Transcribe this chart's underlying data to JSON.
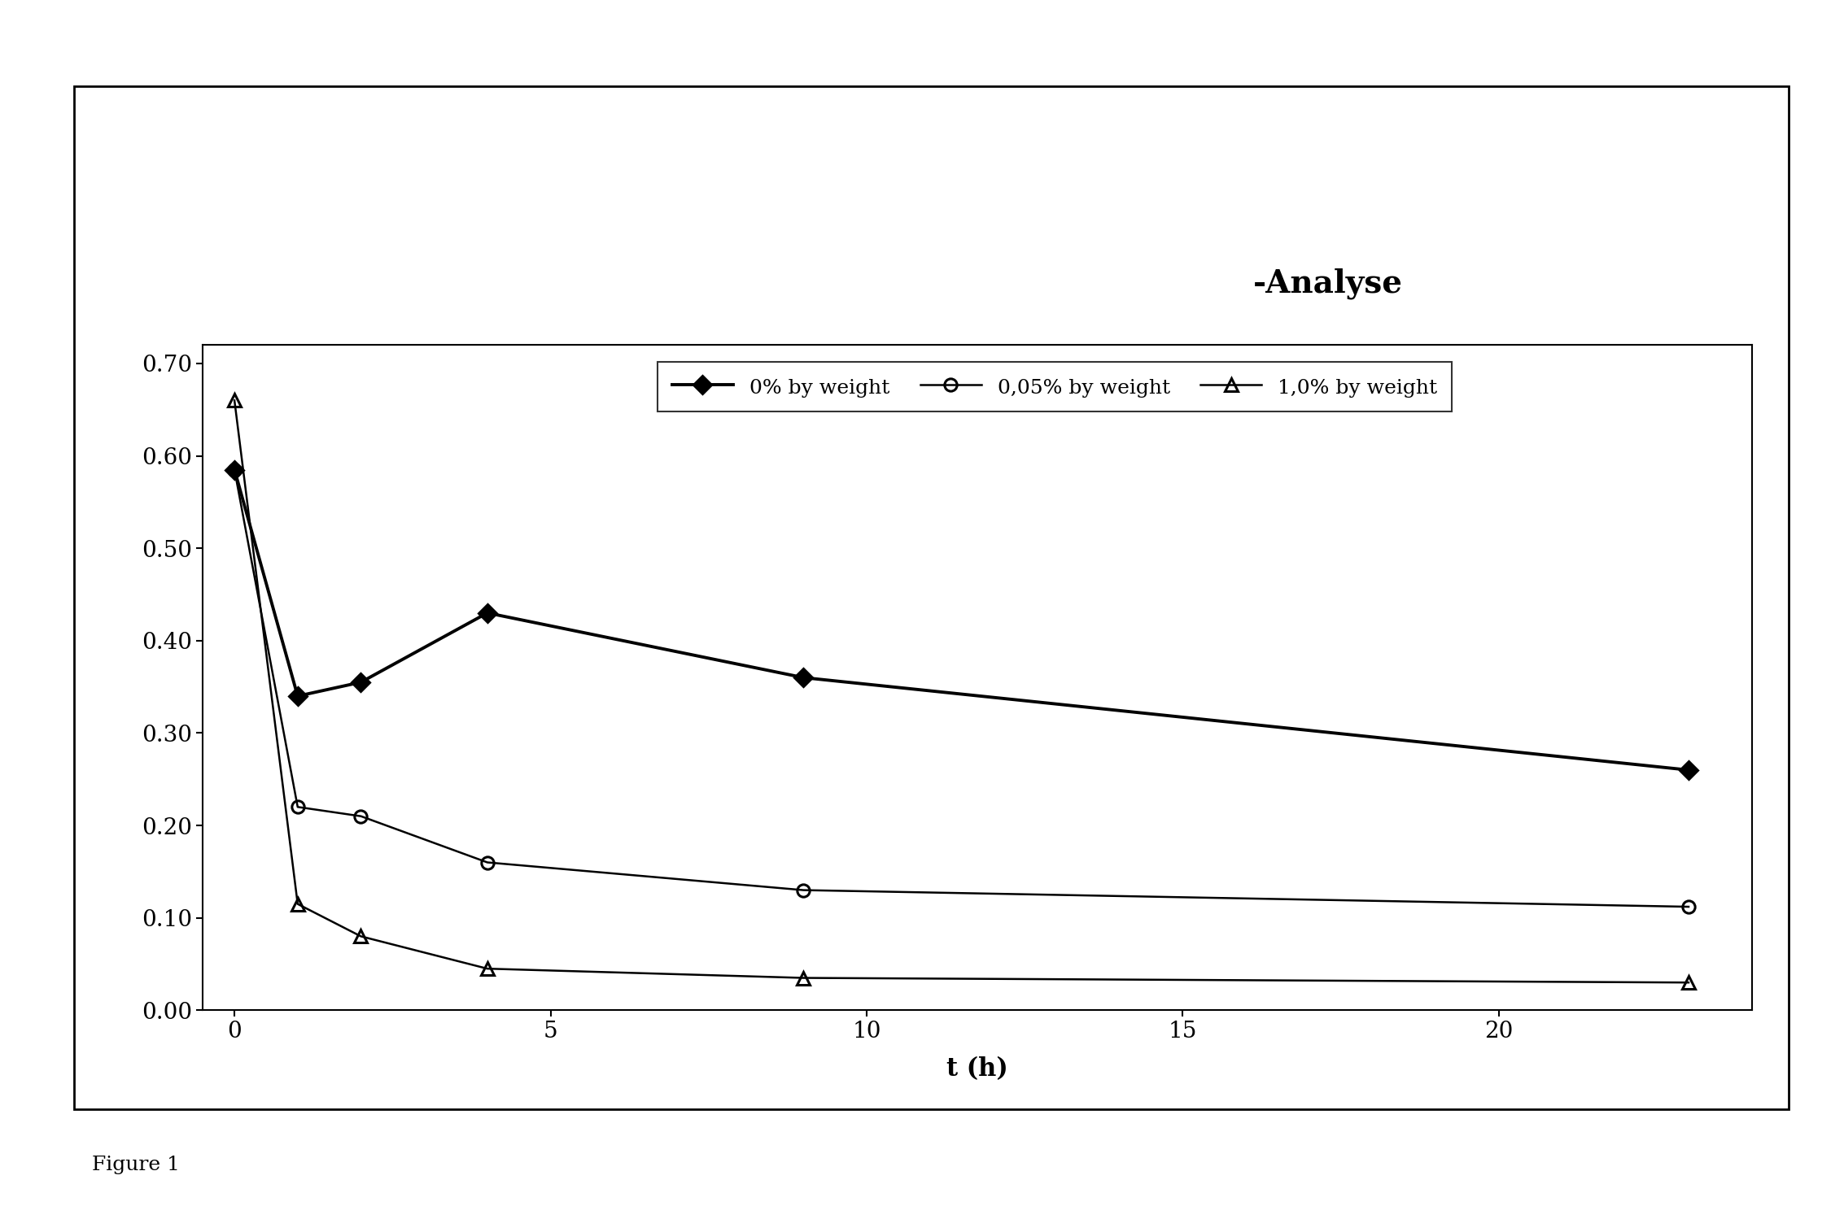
{
  "title": "-Analyse",
  "xlabel": "t (h)",
  "series": [
    {
      "label": "0% by weight",
      "x": [
        0,
        1,
        2,
        4,
        9,
        23
      ],
      "y": [
        0.585,
        0.34,
        0.355,
        0.43,
        0.36,
        0.26
      ],
      "color": "#000000",
      "marker": "D",
      "markersize": 11,
      "linewidth": 2.8,
      "fillstyle": "full"
    },
    {
      "label": "0,05% by weight",
      "x": [
        0,
        1,
        2,
        4,
        9,
        23
      ],
      "y": [
        0.585,
        0.22,
        0.21,
        0.16,
        0.13,
        0.112
      ],
      "color": "#000000",
      "marker": "o",
      "markersize": 11,
      "linewidth": 1.8,
      "fillstyle": "none"
    },
    {
      "label": "1,0% by weight",
      "x": [
        0,
        1,
        2,
        4,
        9,
        23
      ],
      "y": [
        0.66,
        0.115,
        0.08,
        0.045,
        0.035,
        0.03
      ],
      "color": "#000000",
      "marker": "^",
      "markersize": 12,
      "linewidth": 1.8,
      "fillstyle": "none"
    }
  ],
  "xlim": [
    -0.5,
    24.0
  ],
  "ylim": [
    0.0,
    0.72
  ],
  "xticks": [
    0,
    5,
    10,
    15,
    20
  ],
  "yticks": [
    0.0,
    0.1,
    0.2,
    0.3,
    0.4,
    0.5,
    0.6,
    0.7
  ],
  "title_fontsize": 28,
  "axis_label_fontsize": 22,
  "tick_fontsize": 20,
  "legend_fontsize": 18,
  "figure_facecolor": "#ffffff",
  "axes_facecolor": "#ffffff",
  "figure1_fontsize": 18
}
